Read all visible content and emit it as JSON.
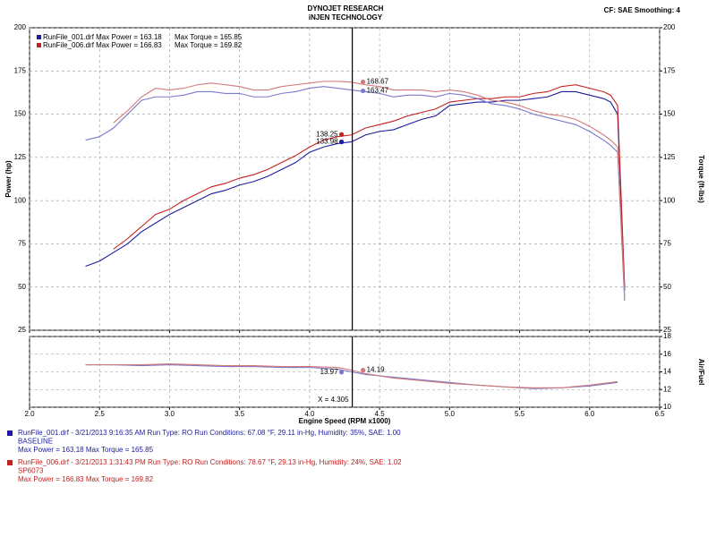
{
  "header": {
    "title": "DYNOJET RESEARCH",
    "subtitle": "iNJEN TECHNOLOGY",
    "settings": "CF: SAE  Smoothing: 4"
  },
  "runs": [
    {
      "color": "#1c1c9c",
      "line": "RunFile_001.drf - 3/21/2013 9:16:35 AM  Run Type: RO  Run Conditions: 67.08 °F, 29.11 in-Hg,  Humidity:  35%, SAE: 1.00",
      "name": "BASELINE",
      "max": "Max Power = 163.18  Max Torque = 165.85"
    },
    {
      "color": "#c42020",
      "line": "RunFile_006.drf - 3/21/2013 1:31:43 PM  Run Type: RO  Run Conditions: 78.67 °F, 29.13 in-Hg,  Humidity:  24%, SAE: 1.02",
      "name": "SP6073",
      "max": "Max Power = 166.83  Max Torque = 169.82"
    }
  ],
  "chart_data": [
    {
      "type": "line",
      "ylabel": "Power (hp)",
      "y2label": "Torque (ft-lbs)",
      "xlim": [
        2,
        6.5
      ],
      "xticks": [
        2,
        2.5,
        3,
        3.5,
        4,
        4.5,
        5,
        5.5,
        6,
        6.5
      ],
      "ylim": [
        25,
        200
      ],
      "yticks": [
        25,
        50,
        75,
        100,
        125,
        150,
        175,
        200
      ],
      "y2lim": [
        25,
        200
      ],
      "y2ticks": [
        25,
        50,
        75,
        100,
        125,
        150,
        175,
        200
      ],
      "grid": true,
      "cursor_x": 4.305,
      "x": [
        2.4,
        2.5,
        2.6,
        2.7,
        2.8,
        2.9,
        3.0,
        3.1,
        3.2,
        3.3,
        3.4,
        3.5,
        3.6,
        3.7,
        3.8,
        3.9,
        4.0,
        4.1,
        4.2,
        4.3,
        4.4,
        4.5,
        4.6,
        4.7,
        4.8,
        4.9,
        5.0,
        5.1,
        5.2,
        5.3,
        5.4,
        5.5,
        5.6,
        5.7,
        5.8,
        5.9,
        6.0,
        6.1,
        6.15,
        6.2,
        6.25
      ],
      "series": [
        {
          "name": "RunFile_001.drf Max Power = 163.18",
          "color": "#1c1c9c",
          "cursor_value": 133.98,
          "values": [
            62,
            65,
            70,
            75,
            82,
            87,
            92,
            96,
            100,
            104,
            106,
            109,
            111,
            114,
            118,
            122,
            128,
            131,
            133,
            134,
            138,
            140,
            141,
            144,
            147,
            149,
            155,
            156,
            157,
            157,
            158,
            158,
            159,
            160,
            163,
            163,
            161,
            159,
            157,
            150,
            48
          ]
        },
        {
          "name": "RunFile_006.drf Max Power = 166.83",
          "color": "#c42020",
          "cursor_value": 138.25,
          "values": [
            null,
            null,
            72,
            78,
            85,
            92,
            95,
            100,
            104,
            108,
            110,
            113,
            115,
            118,
            122,
            126,
            131,
            135,
            137,
            138,
            142,
            144,
            146,
            149,
            151,
            153,
            157,
            158,
            159,
            159,
            160,
            160,
            162,
            163,
            166,
            167,
            165,
            163,
            161,
            155,
            50
          ]
        },
        {
          "name": "Max Torque = 165.85",
          "color": "#7a7acc",
          "axis": "y2",
          "cursor_value": 163.47,
          "values": [
            135,
            137,
            142,
            150,
            158,
            160,
            160,
            161,
            163,
            163,
            162,
            162,
            160,
            160,
            162,
            163,
            165,
            166,
            165,
            164,
            163,
            162,
            160,
            161,
            161,
            160,
            162,
            161,
            159,
            156,
            155,
            153,
            150,
            148,
            146,
            144,
            140,
            135,
            132,
            128,
            42
          ]
        },
        {
          "name": "Max Torque = 169.82",
          "color": "#d47878",
          "axis": "y2",
          "cursor_value": 168.67,
          "values": [
            null,
            null,
            145,
            152,
            160,
            165,
            164,
            165,
            167,
            168,
            167,
            166,
            164,
            164,
            166,
            167,
            168,
            169,
            169,
            168.5,
            167,
            166,
            164,
            164,
            164,
            163,
            164,
            163,
            161,
            158,
            157,
            155,
            152,
            150,
            149,
            147,
            143,
            138,
            135,
            131,
            44
          ]
        }
      ]
    },
    {
      "type": "line",
      "xlabel": "Engine Speed (RPM x1000)",
      "y2label": "Air/Fuel",
      "xlim": [
        2,
        6.5
      ],
      "xticks": [
        {
          "value": 2,
          "label": "2.0"
        },
        {
          "value": 2.5,
          "label": "2.5"
        },
        {
          "value": 3,
          "label": "3.0"
        },
        {
          "value": 3.5,
          "label": "3.5"
        },
        {
          "value": 4,
          "label": "4.0"
        },
        {
          "value": 4.5,
          "label": "4.5"
        },
        {
          "value": 5,
          "label": "5.0"
        },
        {
          "value": 5.5,
          "label": "5.5"
        },
        {
          "value": 6,
          "label": "6.0"
        },
        {
          "value": 6.5,
          "label": "6.5"
        }
      ],
      "y2lim": [
        10,
        18
      ],
      "y2ticks": [
        10,
        12,
        14,
        16,
        18
      ],
      "grid": true,
      "cursor": {
        "value": 4.305,
        "label": "X = 4.305"
      },
      "x": [
        2.4,
        2.6,
        2.8,
        3.0,
        3.2,
        3.4,
        3.6,
        3.8,
        4.0,
        4.2,
        4.3,
        4.4,
        4.6,
        4.8,
        5.0,
        5.2,
        5.4,
        5.6,
        5.8,
        6.0,
        6.2
      ],
      "series": [
        {
          "color": "#7a7acc",
          "axis": "y2",
          "cursor_value": 13.97,
          "values": [
            14.8,
            14.8,
            14.7,
            14.8,
            14.7,
            14.6,
            14.6,
            14.5,
            14.5,
            14.3,
            14.0,
            13.7,
            13.4,
            13.1,
            12.8,
            12.5,
            12.3,
            12.1,
            12.2,
            12.4,
            12.8
          ]
        },
        {
          "color": "#d47878",
          "axis": "y2",
          "cursor_value": 14.19,
          "values": [
            14.8,
            14.8,
            14.8,
            14.9,
            14.8,
            14.7,
            14.7,
            14.6,
            14.6,
            14.5,
            14.2,
            13.8,
            13.3,
            13.0,
            12.7,
            12.5,
            12.3,
            12.2,
            12.2,
            12.5,
            12.9
          ]
        }
      ]
    }
  ]
}
